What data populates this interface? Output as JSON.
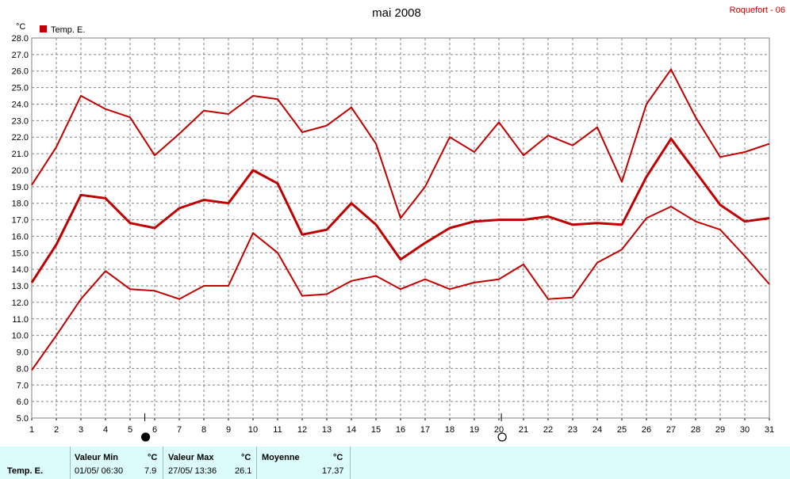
{
  "colors": {
    "series": "#c00000",
    "grid": "#808080",
    "panel": "#dcfcfc"
  },
  "header": {
    "station": "Roquefort - 06"
  },
  "moon_icons": [
    "full-moon-icon",
    "new-moon-icon"
  ],
  "chart_data": {
    "type": "line",
    "title": "mai 2008",
    "ylabel": "°C",
    "ylim": [
      5.0,
      28.0
    ],
    "y_step": 1.0,
    "xlim": [
      1,
      31
    ],
    "x": [
      1,
      2,
      3,
      4,
      5,
      6,
      7,
      8,
      9,
      10,
      11,
      12,
      13,
      14,
      15,
      16,
      17,
      18,
      19,
      20,
      21,
      22,
      23,
      24,
      25,
      26,
      27,
      28,
      29,
      30,
      31
    ],
    "grid": true,
    "legend": {
      "position": "top-left",
      "label": "Temp. E."
    },
    "moon_phase_days": [
      5.6,
      20.1
    ],
    "series": [
      {
        "role": "max",
        "values": [
          19.1,
          21.4,
          24.5,
          23.7,
          23.2,
          20.9,
          22.2,
          23.6,
          23.4,
          24.5,
          24.3,
          22.3,
          22.7,
          23.8,
          21.6,
          17.1,
          19.0,
          22.0,
          21.1,
          22.9,
          20.9,
          22.1,
          21.5,
          22.6,
          19.3,
          24.0,
          26.1,
          23.2,
          20.8,
          21.1,
          21.6
        ]
      },
      {
        "role": "mean",
        "values": [
          13.2,
          15.5,
          18.5,
          18.3,
          16.8,
          16.5,
          17.7,
          18.2,
          18.0,
          20.0,
          19.2,
          16.1,
          16.4,
          18.0,
          16.7,
          14.6,
          15.6,
          16.5,
          16.9,
          17.0,
          17.0,
          17.2,
          16.7,
          16.8,
          16.7,
          19.6,
          21.9,
          19.9,
          17.9,
          16.9,
          17.1
        ]
      },
      {
        "role": "min",
        "values": [
          7.9,
          10.0,
          12.2,
          13.9,
          12.8,
          12.7,
          12.2,
          13.0,
          13.0,
          16.2,
          15.0,
          12.4,
          12.5,
          13.3,
          13.6,
          12.8,
          13.4,
          12.8,
          13.2,
          13.4,
          14.3,
          12.2,
          12.3,
          14.4,
          15.2,
          17.1,
          17.8,
          16.9,
          16.4,
          14.8,
          13.1
        ]
      }
    ]
  },
  "stats": {
    "row_label": "Temp. E.",
    "min_title": "Valeur Min",
    "min_unit": "°C",
    "min_date": "01/05/  06:30",
    "min_value": "7.9",
    "max_title": "Valeur Max",
    "max_unit": "°C",
    "max_date": "27/05/  13:36",
    "max_value": "26.1",
    "mean_title": "Moyenne",
    "mean_unit": "°C",
    "mean_value": "17.37"
  }
}
